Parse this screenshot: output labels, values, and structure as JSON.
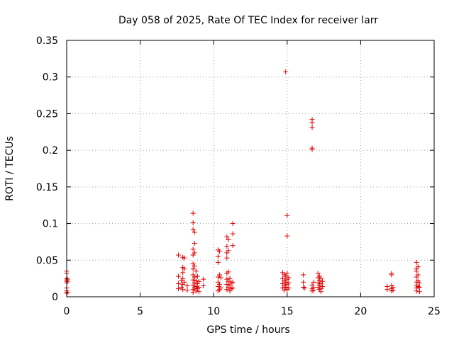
{
  "chart_data": {
    "type": "scatter",
    "title": "Day 058 of 2025, Rate Of TEC Index for receiver larr",
    "xlabel": "GPS time / hours",
    "ylabel": "ROTI / TECUs",
    "xlim": [
      0,
      25
    ],
    "ylim": [
      0,
      0.35
    ],
    "x_ticks": [
      "0",
      "5",
      "10",
      "15",
      "20",
      "25"
    ],
    "y_ticks": [
      "0",
      "0.05",
      "0.1",
      "0.15",
      "0.2",
      "0.25",
      "0.3",
      "0.35"
    ],
    "grid": true,
    "marker": "+",
    "color": "#e00000",
    "points": [
      [
        0.0,
        0.035
      ],
      [
        0.0,
        0.032
      ],
      [
        0.0,
        0.025
      ],
      [
        0.0,
        0.022
      ],
      [
        0.0,
        0.019
      ],
      [
        0.0,
        0.012
      ],
      [
        0.0,
        0.008
      ],
      [
        0.0,
        0.005
      ],
      [
        0.05,
        0.024
      ],
      [
        0.05,
        0.021
      ],
      [
        0.05,
        0.006
      ],
      [
        7.6,
        0.057
      ],
      [
        7.6,
        0.028
      ],
      [
        7.6,
        0.018
      ],
      [
        7.6,
        0.011
      ],
      [
        7.8,
        0.022
      ],
      [
        7.8,
        0.013
      ],
      [
        7.9,
        0.054
      ],
      [
        7.9,
        0.04
      ],
      [
        7.9,
        0.033
      ],
      [
        7.9,
        0.025
      ],
      [
        7.9,
        0.017
      ],
      [
        7.9,
        0.01
      ],
      [
        8.0,
        0.053
      ],
      [
        8.0,
        0.038
      ],
      [
        8.0,
        0.02
      ],
      [
        8.2,
        0.015
      ],
      [
        8.2,
        0.009
      ],
      [
        8.6,
        0.114
      ],
      [
        8.6,
        0.101
      ],
      [
        8.6,
        0.092
      ],
      [
        8.6,
        0.065
      ],
      [
        8.6,
        0.057
      ],
      [
        8.6,
        0.045
      ],
      [
        8.6,
        0.038
      ],
      [
        8.6,
        0.03
      ],
      [
        8.6,
        0.023
      ],
      [
        8.6,
        0.016
      ],
      [
        8.6,
        0.01
      ],
      [
        8.6,
        0.006
      ],
      [
        8.7,
        0.088
      ],
      [
        8.7,
        0.073
      ],
      [
        8.7,
        0.06
      ],
      [
        8.7,
        0.042
      ],
      [
        8.7,
        0.027
      ],
      [
        8.7,
        0.019
      ],
      [
        8.7,
        0.012
      ],
      [
        8.8,
        0.035
      ],
      [
        8.8,
        0.022
      ],
      [
        8.8,
        0.014
      ],
      [
        8.8,
        0.008
      ],
      [
        8.9,
        0.028
      ],
      [
        8.9,
        0.018
      ],
      [
        8.9,
        0.011
      ],
      [
        9.0,
        0.021
      ],
      [
        9.0,
        0.013
      ],
      [
        9.0,
        0.007
      ],
      [
        9.3,
        0.024
      ],
      [
        9.3,
        0.015
      ],
      [
        10.3,
        0.064
      ],
      [
        10.3,
        0.055
      ],
      [
        10.3,
        0.047
      ],
      [
        10.3,
        0.027
      ],
      [
        10.3,
        0.02
      ],
      [
        10.3,
        0.014
      ],
      [
        10.3,
        0.008
      ],
      [
        10.4,
        0.062
      ],
      [
        10.4,
        0.03
      ],
      [
        10.4,
        0.017
      ],
      [
        10.4,
        0.01
      ],
      [
        10.5,
        0.026
      ],
      [
        10.5,
        0.012
      ],
      [
        10.9,
        0.082
      ],
      [
        10.9,
        0.069
      ],
      [
        10.9,
        0.06
      ],
      [
        10.9,
        0.053
      ],
      [
        10.9,
        0.032
      ],
      [
        10.9,
        0.024
      ],
      [
        10.9,
        0.017
      ],
      [
        10.9,
        0.01
      ],
      [
        11.0,
        0.078
      ],
      [
        11.0,
        0.063
      ],
      [
        11.0,
        0.034
      ],
      [
        11.0,
        0.021
      ],
      [
        11.0,
        0.013
      ],
      [
        11.1,
        0.025
      ],
      [
        11.1,
        0.016
      ],
      [
        11.1,
        0.008
      ],
      [
        11.2,
        0.019
      ],
      [
        11.2,
        0.011
      ],
      [
        11.3,
        0.1
      ],
      [
        11.3,
        0.086
      ],
      [
        11.3,
        0.07
      ],
      [
        11.3,
        0.02
      ],
      [
        11.3,
        0.012
      ],
      [
        14.7,
        0.033
      ],
      [
        14.7,
        0.025
      ],
      [
        14.7,
        0.018
      ],
      [
        14.7,
        0.012
      ],
      [
        14.8,
        0.03
      ],
      [
        14.8,
        0.022
      ],
      [
        14.8,
        0.015
      ],
      [
        14.8,
        0.009
      ],
      [
        14.9,
        0.307
      ],
      [
        14.9,
        0.028
      ],
      [
        14.9,
        0.02
      ],
      [
        14.9,
        0.013
      ],
      [
        15.0,
        0.111
      ],
      [
        15.0,
        0.083
      ],
      [
        15.0,
        0.032
      ],
      [
        15.0,
        0.024
      ],
      [
        15.0,
        0.017
      ],
      [
        15.0,
        0.01
      ],
      [
        15.1,
        0.026
      ],
      [
        15.1,
        0.019
      ],
      [
        15.1,
        0.012
      ],
      [
        16.1,
        0.03
      ],
      [
        16.1,
        0.02
      ],
      [
        16.1,
        0.013
      ],
      [
        16.2,
        0.012
      ],
      [
        16.7,
        0.242
      ],
      [
        16.7,
        0.238
      ],
      [
        16.7,
        0.231
      ],
      [
        16.7,
        0.203
      ],
      [
        16.7,
        0.201
      ],
      [
        16.7,
        0.016
      ],
      [
        16.7,
        0.011
      ],
      [
        16.7,
        0.008
      ],
      [
        16.8,
        0.02
      ],
      [
        16.8,
        0.013
      ],
      [
        16.8,
        0.009
      ],
      [
        17.1,
        0.032
      ],
      [
        17.1,
        0.026
      ],
      [
        17.1,
        0.019
      ],
      [
        17.1,
        0.013
      ],
      [
        17.2,
        0.028
      ],
      [
        17.2,
        0.022
      ],
      [
        17.2,
        0.016
      ],
      [
        17.2,
        0.01
      ],
      [
        17.3,
        0.025
      ],
      [
        17.3,
        0.018
      ],
      [
        17.3,
        0.011
      ],
      [
        17.3,
        0.007
      ],
      [
        17.4,
        0.021
      ],
      [
        17.4,
        0.014
      ],
      [
        21.8,
        0.014
      ],
      [
        21.8,
        0.01
      ],
      [
        22.1,
        0.032
      ],
      [
        22.1,
        0.03
      ],
      [
        22.1,
        0.015
      ],
      [
        22.1,
        0.011
      ],
      [
        22.1,
        0.008
      ],
      [
        22.2,
        0.013
      ],
      [
        22.2,
        0.009
      ],
      [
        23.8,
        0.047
      ],
      [
        23.8,
        0.038
      ],
      [
        23.8,
        0.035
      ],
      [
        23.8,
        0.027
      ],
      [
        23.8,
        0.02
      ],
      [
        23.8,
        0.016
      ],
      [
        23.8,
        0.012
      ],
      [
        23.8,
        0.008
      ],
      [
        23.9,
        0.041
      ],
      [
        23.9,
        0.03
      ],
      [
        23.9,
        0.022
      ],
      [
        23.9,
        0.014
      ],
      [
        24.0,
        0.019
      ],
      [
        24.0,
        0.013
      ],
      [
        24.0,
        0.007
      ]
    ]
  }
}
